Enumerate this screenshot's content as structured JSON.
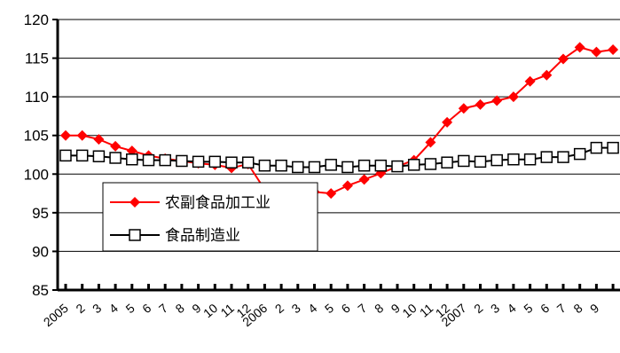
{
  "chart_data": {
    "type": "line",
    "x": [
      "2005",
      "2",
      "3",
      "4",
      "5",
      "6",
      "7",
      "8",
      "9",
      "10",
      "11",
      "12",
      "2006",
      "2",
      "3",
      "4",
      "5",
      "6",
      "7",
      "8",
      "9",
      "10",
      "11",
      "12",
      "2007",
      "2",
      "3",
      "4",
      "5",
      "6",
      "7",
      "8",
      "9",
      ""
    ],
    "ylim": [
      85,
      120
    ],
    "yticks": [
      85,
      90,
      95,
      100,
      105,
      110,
      115,
      120
    ],
    "grid": true,
    "legend": "center-left",
    "series": [
      {
        "name": "农副食品加工业",
        "color": "#ff0000",
        "marker": "diamond",
        "values": [
          105.0,
          105.0,
          104.5,
          103.6,
          103.0,
          102.4,
          102.0,
          101.7,
          101.4,
          101.2,
          100.8,
          101.3,
          98.0,
          97.3,
          97.1,
          97.7,
          97.5,
          98.5,
          99.3,
          100.1,
          101.0,
          101.8,
          104.1,
          106.7,
          108.5,
          109.0,
          109.5,
          110.0,
          112.0,
          112.8,
          114.9,
          116.4,
          115.8,
          116.1
        ]
      },
      {
        "name": "食品制造业",
        "color": "#000000",
        "marker": "square",
        "values": [
          102.4,
          102.4,
          102.3,
          102.1,
          101.9,
          101.8,
          101.8,
          101.7,
          101.6,
          101.6,
          101.5,
          101.5,
          101.1,
          101.1,
          100.9,
          100.9,
          101.2,
          100.9,
          101.1,
          101.1,
          101.0,
          101.2,
          101.3,
          101.5,
          101.7,
          101.6,
          101.8,
          101.9,
          101.9,
          102.2,
          102.2,
          102.6,
          103.4,
          103.4
        ]
      }
    ]
  }
}
